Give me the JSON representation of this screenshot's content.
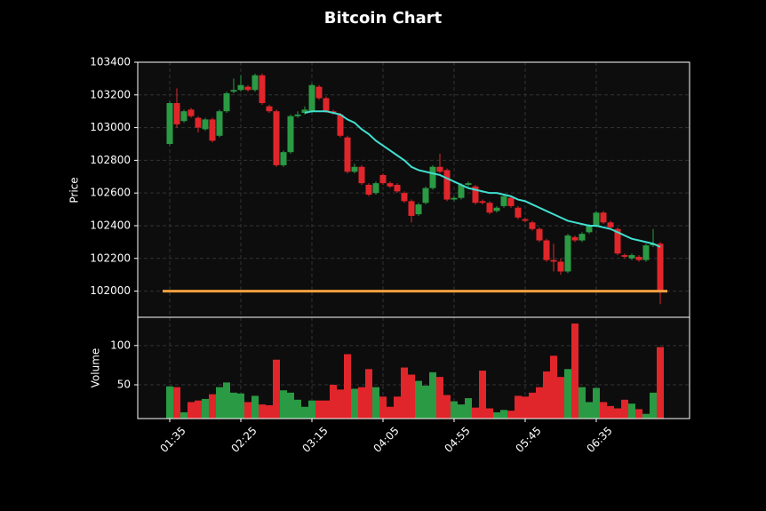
{
  "chart_data": {
    "type": "candlestick",
    "title": "Bitcoin Chart",
    "ylabel": "Price",
    "volume_label": "Volume",
    "open": [
      102900,
      103150,
      103040,
      103110,
      103060,
      102990,
      103050,
      102950,
      103100,
      103220,
      103230,
      103250,
      103230,
      103320,
      103130,
      103100,
      102770,
      102850,
      103070,
      103090,
      103100,
      103250,
      103180,
      103100,
      103080,
      102940,
      102730,
      102760,
      102650,
      102600,
      102710,
      102660,
      102650,
      102600,
      102550,
      102470,
      102540,
      102630,
      102760,
      102740,
      102560,
      102570,
      102650,
      102640,
      102550,
      102540,
      102490,
      102520,
      102570,
      102510,
      102440,
      102420,
      102380,
      102310,
      102190,
      102180,
      102120,
      102330,
      102310,
      102360,
      102400,
      102480,
      102420,
      102380,
      102220,
      102200,
      102210,
      102190,
      102280,
      102290
    ],
    "high": [
      103160,
      103240,
      103110,
      103120,
      103070,
      103060,
      103060,
      103110,
      103220,
      103300,
      103320,
      103260,
      103330,
      103330,
      103140,
      103110,
      102860,
      103080,
      103100,
      103130,
      103270,
      103260,
      103190,
      103110,
      103090,
      102950,
      102780,
      102770,
      102660,
      102670,
      102720,
      102670,
      102660,
      102610,
      102560,
      102540,
      102640,
      102770,
      102840,
      102750,
      102580,
      102660,
      102670,
      102650,
      102560,
      102550,
      102520,
      102590,
      102580,
      102520,
      102450,
      102430,
      102390,
      102320,
      102290,
      102200,
      102350,
      102340,
      102360,
      102410,
      102490,
      102490,
      102430,
      102390,
      102230,
      102230,
      102220,
      102290,
      102380,
      102300
    ],
    "low": [
      102890,
      103000,
      103030,
      103060,
      102970,
      102980,
      102910,
      102940,
      103090,
      103210,
      103220,
      103220,
      103220,
      103140,
      103090,
      102760,
      102760,
      102840,
      103060,
      103080,
      103090,
      103170,
      103090,
      103080,
      102940,
      102720,
      102720,
      102650,
      102580,
      102590,
      102650,
      102630,
      102600,
      102540,
      102420,
      102460,
      102530,
      102620,
      102720,
      102550,
      102550,
      102560,
      102640,
      102530,
      102530,
      102470,
      102480,
      102510,
      102510,
      102440,
      102420,
      102370,
      102300,
      102180,
      102120,
      102100,
      102110,
      102300,
      102300,
      102350,
      102390,
      102410,
      102380,
      102220,
      102200,
      102190,
      102180,
      102180,
      102270,
      101920
    ],
    "close": [
      103150,
      103020,
      103100,
      103070,
      103000,
      103050,
      102920,
      103100,
      103210,
      103230,
      103260,
      103230,
      103320,
      103150,
      103100,
      102770,
      102850,
      103070,
      103080,
      103110,
      103260,
      103180,
      103100,
      103090,
      102950,
      102730,
      102760,
      102660,
      102590,
      102660,
      102660,
      102640,
      102610,
      102550,
      102460,
      102530,
      102630,
      102760,
      102730,
      102560,
      102570,
      102650,
      102660,
      102540,
      102540,
      102480,
      102510,
      102580,
      102520,
      102450,
      102430,
      102380,
      102310,
      102190,
      102180,
      102120,
      102340,
      102310,
      102350,
      102400,
      102480,
      102420,
      102390,
      102230,
      102210,
      102220,
      102190,
      102280,
      102290,
      102000
    ],
    "volume": [
      48,
      47,
      15,
      28,
      30,
      32,
      38,
      47,
      53,
      40,
      39,
      28,
      36,
      25,
      24,
      82,
      43,
      40,
      31,
      22,
      30,
      30,
      30,
      50,
      44,
      89,
      45,
      47,
      70,
      47,
      35,
      22,
      35,
      72,
      63,
      55,
      49,
      66,
      60,
      37,
      29,
      25,
      33,
      21,
      68,
      20,
      15,
      18,
      17,
      36,
      35,
      40,
      47,
      67,
      87,
      60,
      70,
      128,
      47,
      28,
      46,
      28,
      23,
      20,
      31,
      26,
      19,
      13,
      40,
      98
    ],
    "ema": [
      null,
      null,
      null,
      null,
      null,
      null,
      null,
      null,
      null,
      null,
      null,
      null,
      null,
      null,
      null,
      null,
      null,
      null,
      null,
      103090,
      103100,
      103100,
      103100,
      103090,
      103080,
      103050,
      103030,
      102990,
      102960,
      102920,
      102890,
      102860,
      102830,
      102800,
      102760,
      102740,
      102730,
      102720,
      102710,
      102690,
      102670,
      102650,
      102630,
      102620,
      102610,
      102600,
      102600,
      102590,
      102580,
      102560,
      102550,
      102530,
      102510,
      102490,
      102470,
      102450,
      102430,
      102420,
      102410,
      102400,
      102400,
      102390,
      102380,
      102360,
      102340,
      102320,
      102310,
      102300,
      102290,
      102270
    ],
    "ema_color": "#40e0d0",
    "up_color": "#2a9a44",
    "down_color": "#e0262b",
    "hline": {
      "value": 102000,
      "color": "#f5a040"
    },
    "ylim": [
      101840,
      103400
    ],
    "yticks": [
      102000,
      102200,
      102400,
      102600,
      102800,
      103000,
      103200,
      103400
    ],
    "volume_ylim": [
      7,
      136
    ],
    "volume_yticks": [
      50,
      100
    ],
    "xticks": [
      {
        "value": 0,
        "label": "01:35"
      },
      {
        "value": 10,
        "label": "02:25"
      },
      {
        "value": 20,
        "label": "03:15"
      },
      {
        "value": 30,
        "label": "04:05"
      },
      {
        "value": 40,
        "label": "04:55"
      },
      {
        "value": 50,
        "label": "05:45"
      },
      {
        "value": 60,
        "label": "06:35"
      }
    ],
    "grid": true
  }
}
